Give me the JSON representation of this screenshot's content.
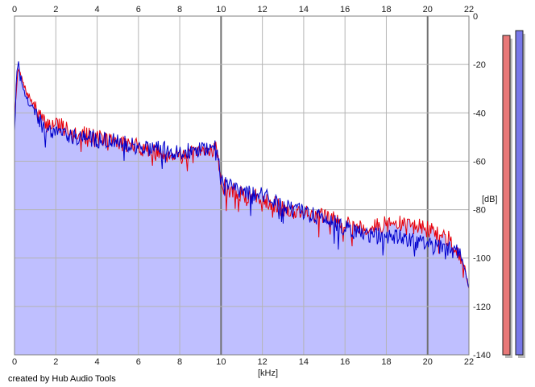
{
  "chart_data": {
    "type": "line",
    "title": "",
    "xlabel": "[kHz]",
    "ylabel": "[dB]",
    "xlim": [
      0,
      22
    ],
    "ylim": [
      -140,
      0
    ],
    "x_ticks": [
      "0",
      "2",
      "4",
      "6",
      "8",
      "10",
      "12",
      "14",
      "16",
      "18",
      "20",
      "22"
    ],
    "y_ticks": [
      "0",
      "-20",
      "-40",
      "-60",
      "-80",
      "-100",
      "-120",
      "-140"
    ],
    "grid": true,
    "x": [
      0.0,
      0.1,
      0.2,
      0.5,
      1.0,
      1.5,
      2.0,
      3.0,
      4.0,
      5.0,
      6.0,
      7.0,
      8.0,
      9.0,
      9.5,
      9.8,
      10.0,
      10.5,
      11.0,
      12.0,
      13.0,
      14.0,
      15.0,
      16.0,
      17.0,
      18.0,
      19.0,
      20.0,
      20.5,
      21.0,
      21.5,
      21.8,
      22.0
    ],
    "series": [
      {
        "color": "#e8000a",
        "values": [
          -44,
          -28,
          -22,
          -30,
          -38,
          -45,
          -44,
          -48,
          -50,
          -52,
          -54,
          -57,
          -57,
          -57,
          -55,
          -54,
          -70,
          -72,
          -74,
          -75,
          -80,
          -81,
          -83,
          -85,
          -88,
          -86,
          -86,
          -88,
          -90,
          -92,
          -97,
          -104,
          -113
        ]
      },
      {
        "color": "#0000cc",
        "values": [
          -40,
          -24,
          -20,
          -33,
          -40,
          -47,
          -47,
          -50,
          -51,
          -52,
          -54,
          -55,
          -56,
          -55,
          -54,
          -52,
          -68,
          -70,
          -72,
          -74,
          -79,
          -81,
          -84,
          -87,
          -91,
          -91,
          -92,
          -95,
          -95,
          -96,
          -97,
          -104,
          -113
        ]
      }
    ],
    "level_meters": [
      {
        "color": "#e87878",
        "level_db": -8
      },
      {
        "color": "#7878e8",
        "level_db": -6
      }
    ],
    "fill_color": "#bfbfff"
  },
  "footer": {
    "credit": "created by Hub Audio Tools"
  }
}
